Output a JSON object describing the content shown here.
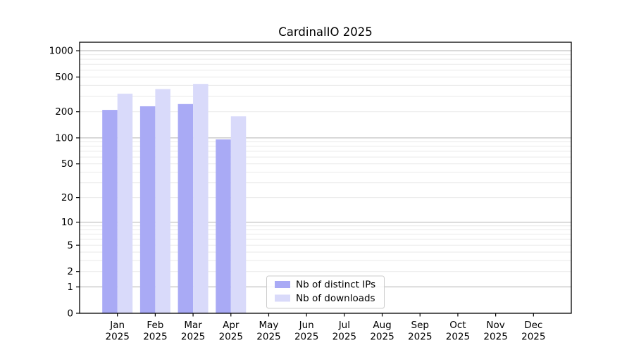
{
  "chart_data": {
    "type": "bar",
    "title": "CardinalIO 2025",
    "x_categories": [
      "Jan",
      "Feb",
      "Mar",
      "Apr",
      "May",
      "Jun",
      "Jul",
      "Aug",
      "Sep",
      "Oct",
      "Nov",
      "Dec"
    ],
    "x_year": "2025",
    "series": [
      {
        "name": "Nb of distinct IPs",
        "color": "#a9aaf5",
        "values": [
          210,
          231,
          245,
          96,
          0,
          0,
          0,
          0,
          0,
          0,
          0,
          0
        ]
      },
      {
        "name": "Nb of downloads",
        "color": "#d9dafa",
        "values": [
          322,
          364,
          417,
          177,
          0,
          0,
          0,
          0,
          0,
          0,
          0,
          0
        ]
      }
    ],
    "yscale": "log1p",
    "ylim": [
      0,
      1250
    ],
    "yticks": [
      0,
      1,
      2,
      5,
      10,
      20,
      50,
      100,
      200,
      500,
      1000
    ],
    "grid": {
      "major_at": [
        1,
        10,
        100,
        1000
      ],
      "minor_per_decade": [
        2,
        3,
        4,
        5,
        6,
        7,
        8,
        9
      ],
      "major_color": "#b3b3b3",
      "minor_color": "#e9e9e9"
    },
    "legend": {
      "position": "lower-center-inside"
    }
  }
}
